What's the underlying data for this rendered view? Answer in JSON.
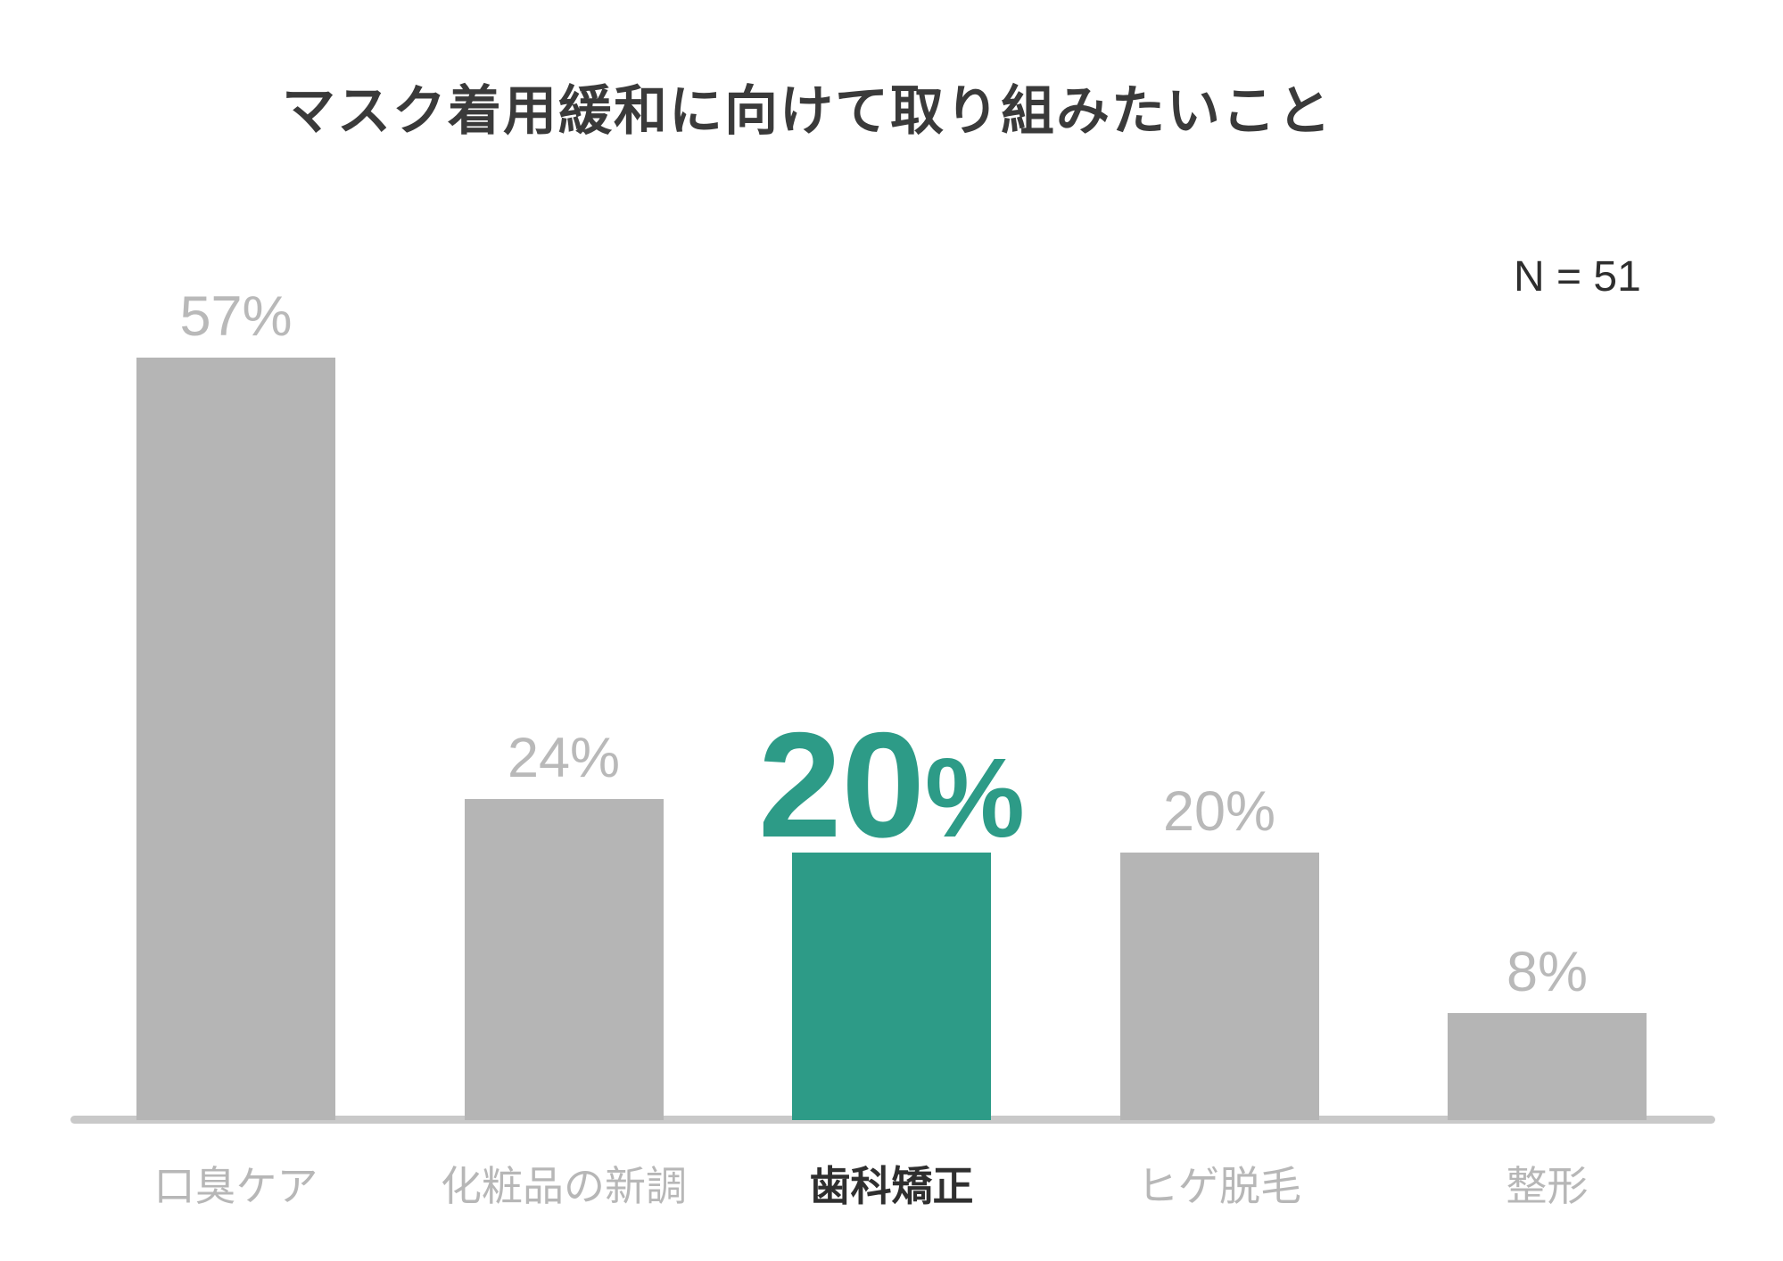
{
  "chart": {
    "title": "マスク着用緩和に向けて取り組みたいこと",
    "sample_size_label": "N = 51"
  },
  "chart_data": {
    "type": "bar",
    "title": "マスク着用緩和に向けて取り組みたいこと",
    "subtitle": "",
    "sample_size_label": "N = 51",
    "categories": [
      "口臭ケア",
      "化粧品の新調",
      "歯科矯正",
      "ヒゲ脱毛",
      "整形"
    ],
    "values": [
      57,
      24,
      20,
      20,
      8
    ],
    "value_labels": [
      "57%",
      "24%",
      "20%",
      "20%",
      "8%"
    ],
    "highlighted_index": 2,
    "xlabel": "",
    "ylabel": "",
    "ylim": [
      0,
      60
    ],
    "grid": false,
    "legend_position": "none",
    "colors": {
      "bar_default": "#b5b5b5",
      "bar_highlight": "#2d9b87",
      "value_label_default": "#b9b9b9",
      "value_label_highlight": "#2d9b87",
      "category_label_default": "#b7b7b7",
      "category_label_highlight": "#2f2f2f",
      "title_text": "#3a3a3a",
      "sample_size_text": "#2e2e2e",
      "axis_line": "#c9c9c9"
    }
  }
}
